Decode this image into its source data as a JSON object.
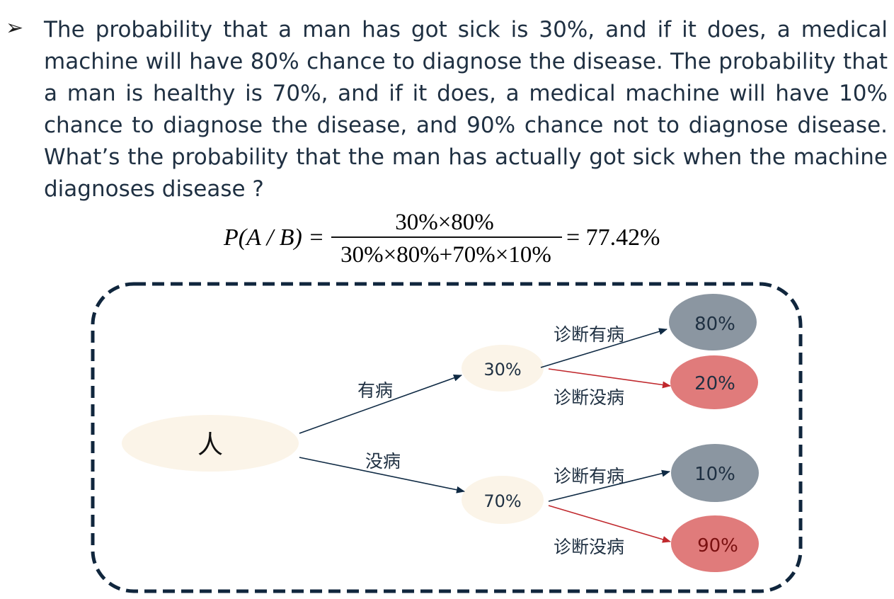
{
  "bullet": "➢",
  "problem_text": "The probability that a man has got sick is 30%, and if it does, a medical machine will have 80% chance to diagnose the disease.  The probability that a man is healthy is 70%, and if it does, a medical machine will have 10% chance to diagnose the disease, and 90% chance not to diagnose disease. What’s the probability that the man has actually got sick when the machine diagnoses disease ?",
  "formula": {
    "lhs": "P(A / B) =",
    "numerator": "30%×80%",
    "denominator": "30%×80%+70%×10%",
    "rhs": "= 77.42%"
  },
  "tree": {
    "root": "人",
    "branch_sick_label": "有病",
    "branch_healthy_label": "没病",
    "node_sick": "30%",
    "node_healthy": "70%",
    "diag_positive_label": "诊断有病",
    "diag_negative_label": "诊断没病",
    "leaf_sick_positive": "80%",
    "leaf_sick_negative": "20%",
    "leaf_healthy_positive": "10%",
    "leaf_healthy_negative": "90%"
  },
  "colors": {
    "text_dark": "#1f3042",
    "node_fill": "#fbf4e8",
    "gray_leaf": "#8b96a1",
    "red_leaf": "#e07b7b",
    "arrow_dark": "#0f2a44",
    "arrow_red": "#c0282d",
    "frame": "#10263d"
  }
}
